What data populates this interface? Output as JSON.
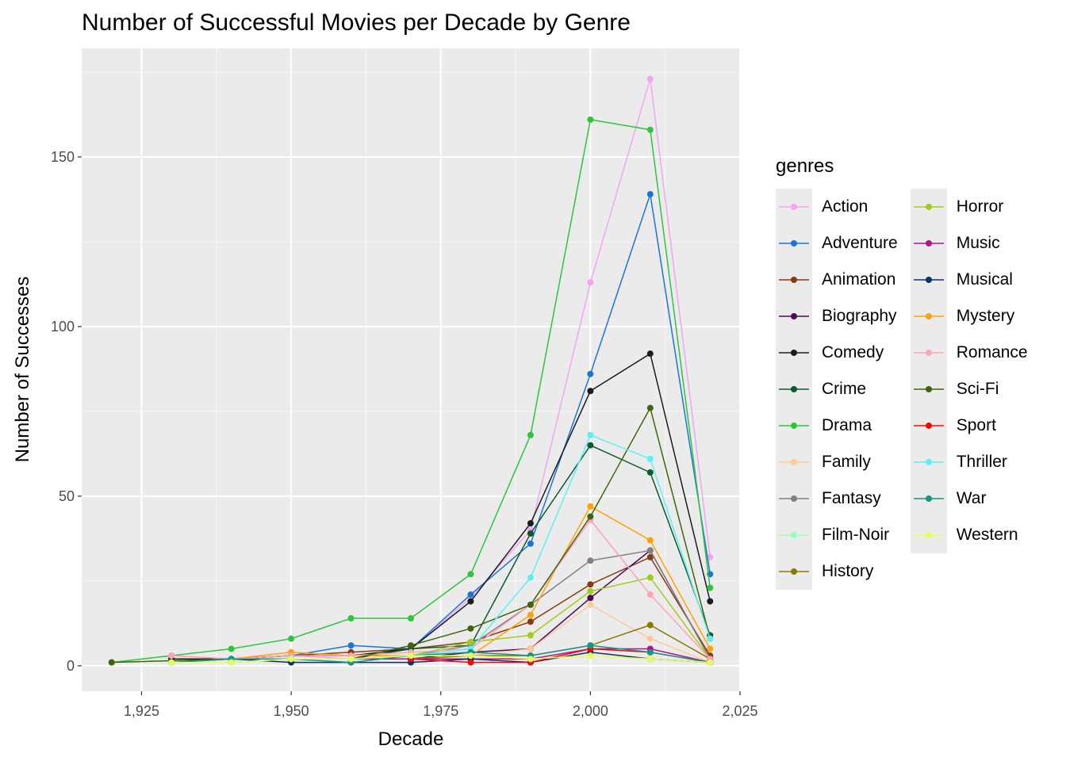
{
  "chart_data": {
    "type": "line",
    "title": "Number of Successful Movies per Decade by Genre",
    "xlabel": "Decade",
    "ylabel": "Number of Successes",
    "xlim": [
      1915,
      2025
    ],
    "ylim": [
      -7.5,
      182
    ],
    "x_ticks": [
      1925,
      1950,
      1975,
      2000,
      2025
    ],
    "x_tick_labels": [
      "1,925",
      "1,950",
      "1,975",
      "2,000",
      "2,025"
    ],
    "y_ticks": [
      0,
      50,
      100,
      150
    ],
    "y_tick_labels": [
      "0",
      "50",
      "100",
      "150"
    ],
    "grid": true,
    "legend_position": "right",
    "legend_title": "genres",
    "series": [
      {
        "name": "Action",
        "color": "#f5a3f5",
        "points": [
          [
            1930,
            3
          ],
          [
            1940,
            2
          ],
          [
            1950,
            3
          ],
          [
            1960,
            2
          ],
          [
            1970,
            5
          ],
          [
            1980,
            20
          ],
          [
            1990,
            40
          ],
          [
            2000,
            113
          ],
          [
            2010,
            173
          ],
          [
            2020,
            32
          ]
        ]
      },
      {
        "name": "Adventure",
        "color": "#1a75d9",
        "points": [
          [
            1930,
            2
          ],
          [
            1940,
            2
          ],
          [
            1950,
            3
          ],
          [
            1960,
            6
          ],
          [
            1970,
            5
          ],
          [
            1980,
            21
          ],
          [
            1990,
            36
          ],
          [
            2000,
            86
          ],
          [
            2010,
            139
          ],
          [
            2020,
            27
          ]
        ]
      },
      {
        "name": "Animation",
        "color": "#8b3a0f",
        "points": [
          [
            1940,
            2
          ],
          [
            1950,
            3
          ],
          [
            1960,
            4
          ],
          [
            1970,
            5
          ],
          [
            1980,
            7
          ],
          [
            1990,
            13
          ],
          [
            2000,
            24
          ],
          [
            2010,
            32
          ],
          [
            2020,
            3
          ]
        ]
      },
      {
        "name": "Biography",
        "color": "#4b0a52",
        "points": [
          [
            1950,
            2
          ],
          [
            1960,
            2
          ],
          [
            1970,
            2
          ],
          [
            1980,
            4
          ],
          [
            1990,
            5
          ],
          [
            2000,
            20
          ],
          [
            2010,
            34
          ],
          [
            2020,
            2
          ]
        ]
      },
      {
        "name": "Comedy",
        "color": "#1c1c1c",
        "points": [
          [
            1930,
            2
          ],
          [
            1940,
            2
          ],
          [
            1950,
            3
          ],
          [
            1960,
            3
          ],
          [
            1970,
            5
          ],
          [
            1980,
            19
          ],
          [
            1990,
            42
          ],
          [
            2000,
            81
          ],
          [
            2010,
            92
          ],
          [
            2020,
            19
          ]
        ]
      },
      {
        "name": "Crime",
        "color": "#0a5c2e",
        "points": [
          [
            1940,
            2
          ],
          [
            1950,
            2
          ],
          [
            1960,
            2
          ],
          [
            1970,
            5
          ],
          [
            1980,
            6
          ],
          [
            1990,
            39
          ],
          [
            2000,
            65
          ],
          [
            2010,
            57
          ],
          [
            2020,
            9
          ]
        ]
      },
      {
        "name": "Drama",
        "color": "#2ec43e",
        "points": [
          [
            1920,
            1
          ],
          [
            1930,
            3
          ],
          [
            1940,
            5
          ],
          [
            1950,
            8
          ],
          [
            1960,
            14
          ],
          [
            1970,
            14
          ],
          [
            1980,
            27
          ],
          [
            1990,
            68
          ],
          [
            2000,
            161
          ],
          [
            2010,
            158
          ],
          [
            2020,
            23
          ]
        ]
      },
      {
        "name": "Family",
        "color": "#ffc999",
        "points": [
          [
            1940,
            1
          ],
          [
            1950,
            2
          ],
          [
            1960,
            2
          ],
          [
            1970,
            2
          ],
          [
            1980,
            3
          ],
          [
            1990,
            5
          ],
          [
            2000,
            18
          ],
          [
            2010,
            8
          ],
          [
            2020,
            1
          ]
        ]
      },
      {
        "name": "Fantasy",
        "color": "#808080",
        "points": [
          [
            1940,
            1
          ],
          [
            1950,
            2
          ],
          [
            1960,
            2
          ],
          [
            1970,
            3
          ],
          [
            1980,
            6
          ],
          [
            1990,
            18
          ],
          [
            2000,
            31
          ],
          [
            2010,
            34
          ],
          [
            2020,
            2
          ]
        ]
      },
      {
        "name": "Film-Noir",
        "color": "#99ffb3",
        "points": [
          [
            1940,
            2
          ],
          [
            1950,
            2
          ],
          [
            1960,
            1
          ]
        ]
      },
      {
        "name": "History",
        "color": "#8b7a05",
        "points": [
          [
            1940,
            2
          ],
          [
            1950,
            2
          ],
          [
            1960,
            2
          ],
          [
            1970,
            2
          ],
          [
            1980,
            3
          ],
          [
            1990,
            3
          ],
          [
            2000,
            6
          ],
          [
            2010,
            12
          ],
          [
            2020,
            2
          ]
        ]
      },
      {
        "name": "Horror",
        "color": "#a1cc1a",
        "points": [
          [
            1940,
            2
          ],
          [
            1950,
            2
          ],
          [
            1960,
            2
          ],
          [
            1970,
            3
          ],
          [
            1980,
            7
          ],
          [
            1990,
            9
          ],
          [
            2000,
            22
          ],
          [
            2010,
            26
          ],
          [
            2020,
            2
          ]
        ]
      },
      {
        "name": "Music",
        "color": "#b3128c",
        "points": [
          [
            1940,
            2
          ],
          [
            1950,
            2
          ],
          [
            1960,
            2
          ],
          [
            1970,
            2
          ],
          [
            1980,
            2
          ],
          [
            1990,
            2
          ],
          [
            2000,
            5
          ],
          [
            2010,
            5
          ],
          [
            2020,
            1
          ]
        ]
      },
      {
        "name": "Musical",
        "color": "#0f2f70",
        "points": [
          [
            1930,
            1
          ],
          [
            1940,
            2
          ],
          [
            1950,
            1
          ],
          [
            1960,
            1
          ],
          [
            1970,
            1
          ],
          [
            1980,
            2
          ],
          [
            1990,
            1
          ],
          [
            2000,
            4
          ],
          [
            2010,
            2
          ],
          [
            2020,
            1
          ]
        ]
      },
      {
        "name": "Mystery",
        "color": "#ffa10a",
        "points": [
          [
            1940,
            2
          ],
          [
            1950,
            4
          ],
          [
            1960,
            3
          ],
          [
            1970,
            3
          ],
          [
            1980,
            3
          ],
          [
            1990,
            15
          ],
          [
            2000,
            47
          ],
          [
            2010,
            37
          ],
          [
            2020,
            5
          ]
        ]
      },
      {
        "name": "Romance",
        "color": "#ffa3b8",
        "points": [
          [
            1930,
            3
          ],
          [
            1940,
            2
          ],
          [
            1950,
            3
          ],
          [
            1960,
            3
          ],
          [
            1970,
            4
          ],
          [
            1980,
            5
          ],
          [
            1990,
            18
          ],
          [
            2000,
            43
          ],
          [
            2010,
            21
          ],
          [
            2020,
            2
          ]
        ]
      },
      {
        "name": "Sci-Fi",
        "color": "#3d660a",
        "points": [
          [
            1920,
            1
          ],
          [
            1940,
            2
          ],
          [
            1950,
            2
          ],
          [
            1960,
            2
          ],
          [
            1970,
            6
          ],
          [
            1980,
            11
          ],
          [
            1990,
            18
          ],
          [
            2000,
            44
          ],
          [
            2010,
            76
          ],
          [
            2020,
            8
          ]
        ]
      },
      {
        "name": "Sport",
        "color": "#f20a0a",
        "points": [
          [
            1970,
            2
          ],
          [
            1980,
            1
          ],
          [
            1990,
            1
          ],
          [
            2000,
            5
          ],
          [
            2010,
            4
          ],
          [
            2020,
            1
          ]
        ]
      },
      {
        "name": "Thriller",
        "color": "#5ef0f0",
        "points": [
          [
            1940,
            1
          ],
          [
            1950,
            2
          ],
          [
            1960,
            2
          ],
          [
            1970,
            3
          ],
          [
            1980,
            5
          ],
          [
            1990,
            26
          ],
          [
            2000,
            68
          ],
          [
            2010,
            61
          ],
          [
            2020,
            8
          ]
        ]
      },
      {
        "name": "War",
        "color": "#109985",
        "points": [
          [
            1930,
            1
          ],
          [
            1940,
            2
          ],
          [
            1950,
            2
          ],
          [
            1960,
            1
          ],
          [
            1970,
            3
          ],
          [
            1980,
            4
          ],
          [
            1990,
            3
          ],
          [
            2000,
            6
          ],
          [
            2010,
            4
          ],
          [
            2020,
            1
          ]
        ]
      },
      {
        "name": "Western",
        "color": "#e5ff5c",
        "points": [
          [
            1930,
            1
          ],
          [
            1940,
            1
          ],
          [
            1950,
            2
          ],
          [
            1960,
            2
          ],
          [
            1970,
            3
          ],
          [
            1980,
            3
          ],
          [
            1990,
            2
          ],
          [
            2000,
            3
          ],
          [
            2010,
            2
          ],
          [
            2020,
            1
          ]
        ]
      }
    ]
  }
}
